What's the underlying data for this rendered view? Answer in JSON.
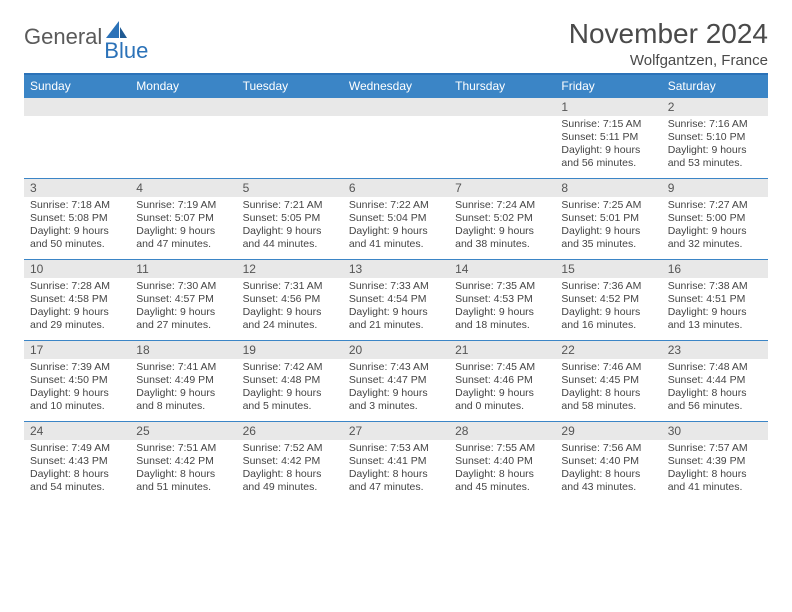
{
  "brand": {
    "general": "General",
    "blue": "Blue"
  },
  "title": "November 2024",
  "location": "Wolfgantzen, France",
  "colors": {
    "accent": "#3b85c6",
    "rule": "#2b72b8",
    "daynum_bg": "#e8e8e8",
    "text": "#444444",
    "logo_gray": "#5a5a5a"
  },
  "weekdays": [
    "Sunday",
    "Monday",
    "Tuesday",
    "Wednesday",
    "Thursday",
    "Friday",
    "Saturday"
  ],
  "weeks": [
    [
      {
        "n": "",
        "sunrise": "",
        "sunset": "",
        "daylight": ""
      },
      {
        "n": "",
        "sunrise": "",
        "sunset": "",
        "daylight": ""
      },
      {
        "n": "",
        "sunrise": "",
        "sunset": "",
        "daylight": ""
      },
      {
        "n": "",
        "sunrise": "",
        "sunset": "",
        "daylight": ""
      },
      {
        "n": "",
        "sunrise": "",
        "sunset": "",
        "daylight": ""
      },
      {
        "n": "1",
        "sunrise": "Sunrise: 7:15 AM",
        "sunset": "Sunset: 5:11 PM",
        "daylight": "Daylight: 9 hours and 56 minutes."
      },
      {
        "n": "2",
        "sunrise": "Sunrise: 7:16 AM",
        "sunset": "Sunset: 5:10 PM",
        "daylight": "Daylight: 9 hours and 53 minutes."
      }
    ],
    [
      {
        "n": "3",
        "sunrise": "Sunrise: 7:18 AM",
        "sunset": "Sunset: 5:08 PM",
        "daylight": "Daylight: 9 hours and 50 minutes."
      },
      {
        "n": "4",
        "sunrise": "Sunrise: 7:19 AM",
        "sunset": "Sunset: 5:07 PM",
        "daylight": "Daylight: 9 hours and 47 minutes."
      },
      {
        "n": "5",
        "sunrise": "Sunrise: 7:21 AM",
        "sunset": "Sunset: 5:05 PM",
        "daylight": "Daylight: 9 hours and 44 minutes."
      },
      {
        "n": "6",
        "sunrise": "Sunrise: 7:22 AM",
        "sunset": "Sunset: 5:04 PM",
        "daylight": "Daylight: 9 hours and 41 minutes."
      },
      {
        "n": "7",
        "sunrise": "Sunrise: 7:24 AM",
        "sunset": "Sunset: 5:02 PM",
        "daylight": "Daylight: 9 hours and 38 minutes."
      },
      {
        "n": "8",
        "sunrise": "Sunrise: 7:25 AM",
        "sunset": "Sunset: 5:01 PM",
        "daylight": "Daylight: 9 hours and 35 minutes."
      },
      {
        "n": "9",
        "sunrise": "Sunrise: 7:27 AM",
        "sunset": "Sunset: 5:00 PM",
        "daylight": "Daylight: 9 hours and 32 minutes."
      }
    ],
    [
      {
        "n": "10",
        "sunrise": "Sunrise: 7:28 AM",
        "sunset": "Sunset: 4:58 PM",
        "daylight": "Daylight: 9 hours and 29 minutes."
      },
      {
        "n": "11",
        "sunrise": "Sunrise: 7:30 AM",
        "sunset": "Sunset: 4:57 PM",
        "daylight": "Daylight: 9 hours and 27 minutes."
      },
      {
        "n": "12",
        "sunrise": "Sunrise: 7:31 AM",
        "sunset": "Sunset: 4:56 PM",
        "daylight": "Daylight: 9 hours and 24 minutes."
      },
      {
        "n": "13",
        "sunrise": "Sunrise: 7:33 AM",
        "sunset": "Sunset: 4:54 PM",
        "daylight": "Daylight: 9 hours and 21 minutes."
      },
      {
        "n": "14",
        "sunrise": "Sunrise: 7:35 AM",
        "sunset": "Sunset: 4:53 PM",
        "daylight": "Daylight: 9 hours and 18 minutes."
      },
      {
        "n": "15",
        "sunrise": "Sunrise: 7:36 AM",
        "sunset": "Sunset: 4:52 PM",
        "daylight": "Daylight: 9 hours and 16 minutes."
      },
      {
        "n": "16",
        "sunrise": "Sunrise: 7:38 AM",
        "sunset": "Sunset: 4:51 PM",
        "daylight": "Daylight: 9 hours and 13 minutes."
      }
    ],
    [
      {
        "n": "17",
        "sunrise": "Sunrise: 7:39 AM",
        "sunset": "Sunset: 4:50 PM",
        "daylight": "Daylight: 9 hours and 10 minutes."
      },
      {
        "n": "18",
        "sunrise": "Sunrise: 7:41 AM",
        "sunset": "Sunset: 4:49 PM",
        "daylight": "Daylight: 9 hours and 8 minutes."
      },
      {
        "n": "19",
        "sunrise": "Sunrise: 7:42 AM",
        "sunset": "Sunset: 4:48 PM",
        "daylight": "Daylight: 9 hours and 5 minutes."
      },
      {
        "n": "20",
        "sunrise": "Sunrise: 7:43 AM",
        "sunset": "Sunset: 4:47 PM",
        "daylight": "Daylight: 9 hours and 3 minutes."
      },
      {
        "n": "21",
        "sunrise": "Sunrise: 7:45 AM",
        "sunset": "Sunset: 4:46 PM",
        "daylight": "Daylight: 9 hours and 0 minutes."
      },
      {
        "n": "22",
        "sunrise": "Sunrise: 7:46 AM",
        "sunset": "Sunset: 4:45 PM",
        "daylight": "Daylight: 8 hours and 58 minutes."
      },
      {
        "n": "23",
        "sunrise": "Sunrise: 7:48 AM",
        "sunset": "Sunset: 4:44 PM",
        "daylight": "Daylight: 8 hours and 56 minutes."
      }
    ],
    [
      {
        "n": "24",
        "sunrise": "Sunrise: 7:49 AM",
        "sunset": "Sunset: 4:43 PM",
        "daylight": "Daylight: 8 hours and 54 minutes."
      },
      {
        "n": "25",
        "sunrise": "Sunrise: 7:51 AM",
        "sunset": "Sunset: 4:42 PM",
        "daylight": "Daylight: 8 hours and 51 minutes."
      },
      {
        "n": "26",
        "sunrise": "Sunrise: 7:52 AM",
        "sunset": "Sunset: 4:42 PM",
        "daylight": "Daylight: 8 hours and 49 minutes."
      },
      {
        "n": "27",
        "sunrise": "Sunrise: 7:53 AM",
        "sunset": "Sunset: 4:41 PM",
        "daylight": "Daylight: 8 hours and 47 minutes."
      },
      {
        "n": "28",
        "sunrise": "Sunrise: 7:55 AM",
        "sunset": "Sunset: 4:40 PM",
        "daylight": "Daylight: 8 hours and 45 minutes."
      },
      {
        "n": "29",
        "sunrise": "Sunrise: 7:56 AM",
        "sunset": "Sunset: 4:40 PM",
        "daylight": "Daylight: 8 hours and 43 minutes."
      },
      {
        "n": "30",
        "sunrise": "Sunrise: 7:57 AM",
        "sunset": "Sunset: 4:39 PM",
        "daylight": "Daylight: 8 hours and 41 minutes."
      }
    ]
  ]
}
